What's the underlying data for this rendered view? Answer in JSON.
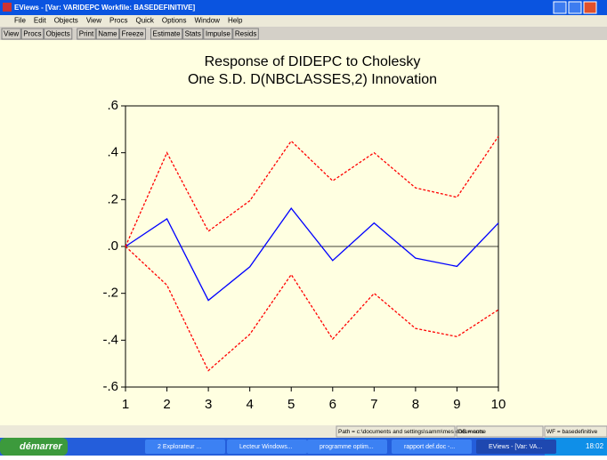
{
  "window_title": "EViews - [Var: VARIDEPC   Workfile: BASEDEFINITIVE]",
  "menu": [
    "File",
    "Edit",
    "Objects",
    "View",
    "Procs",
    "Quick",
    "Options",
    "Window",
    "Help"
  ],
  "toolbar": [
    "View",
    "Procs",
    "Objects",
    "Print",
    "Name",
    "Freeze",
    "Estimate",
    "Stats",
    "Impulse",
    "Resids"
  ],
  "chart_data": {
    "type": "line",
    "title": "Response of DIDEPC to Cholesky",
    "subtitle": "One S.D. D(NBCLASSES,2) Innovation",
    "x": [
      1,
      2,
      3,
      4,
      5,
      6,
      7,
      8,
      9,
      10
    ],
    "series": [
      {
        "color": "#0000ff",
        "line_style": "solid",
        "values": [
          0,
          0.118,
          -0.23,
          -0.087,
          0.163,
          -0.06,
          0.1,
          -0.05,
          -0.085,
          0.1
        ]
      },
      {
        "color": "#ff0000",
        "line_style": "dashed",
        "values": [
          0,
          0.4,
          0.065,
          0.195,
          0.45,
          0.28,
          0.4,
          0.25,
          0.21,
          0.47
        ]
      },
      {
        "color": "#ff0000",
        "line_style": "dashed",
        "values": [
          0,
          -0.165,
          -0.53,
          -0.375,
          -0.12,
          -0.395,
          -0.2,
          -0.35,
          -0.385,
          -0.27
        ]
      }
    ],
    "xlim": [
      1,
      10
    ],
    "xticks": [
      1,
      2,
      3,
      4,
      5,
      6,
      7,
      8,
      9,
      10
    ],
    "ylim": [
      -0.6,
      0.6
    ],
    "yticks": [
      {
        "value": 0.6,
        "label": ".6"
      },
      {
        "value": 0.4,
        "label": ".4"
      },
      {
        "value": 0.2,
        "label": ".2"
      },
      {
        "value": 0,
        "label": ".0"
      },
      {
        "value": -0.2,
        "label": "-.2"
      },
      {
        "value": -0.4,
        "label": "-.4"
      },
      {
        "value": -0.6,
        "label": "-.6"
      }
    ],
    "zero_line": true
  },
  "status": [
    "Path = c:\\documents and settings\\samm\\mes documents",
    "DB = none",
    "WF = basedefinitive"
  ],
  "taskbar": {
    "start": "démarrer",
    "items": [
      "2 Explorateur ...",
      "Lecteur Windows...",
      "programme optim...",
      "rapport def.doc -...",
      "EViews - [Var: VA..."
    ],
    "clock": "18:02"
  }
}
